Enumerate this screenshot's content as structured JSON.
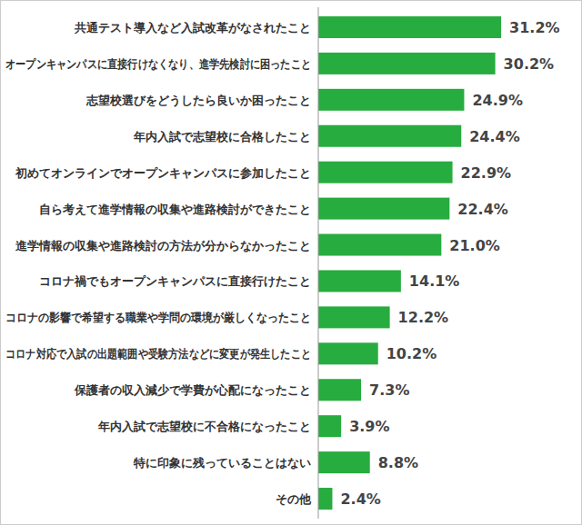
{
  "chart_data": {
    "type": "bar",
    "orientation": "horizontal",
    "categories": [
      "共通テスト導入など入試改革がなされたこと",
      "オープンキャンパスに直接行けなくなり、進学先検討に困ったこと",
      "志望校選びをどうしたら良いか困ったこと",
      "年内入試で志望校に合格したこと",
      "初めてオンラインでオープンキャンパスに参加したこと",
      "自ら考えて進学情報の収集や進路検討ができたこと",
      "進学情報の収集や進路検討の方法が分からなかったこと",
      "コロナ禍でもオープンキャンパスに直接行けたこと",
      "コロナの影響で希望する職業や学問の環境が厳しくなったこと",
      "コロナ対応で入試の出題範囲や受験方法などに変更が発生したこと",
      "保護者の収入減少で学費が心配になったこと",
      "年内入試で志望校に不合格になったこと",
      "特に印象に残っていることはない",
      "その他"
    ],
    "values": [
      31.2,
      30.2,
      24.9,
      24.4,
      22.9,
      22.4,
      21.0,
      14.1,
      12.2,
      10.2,
      7.3,
      3.9,
      8.8,
      2.4
    ],
    "value_labels": [
      "31.2%",
      "30.2%",
      "24.9%",
      "24.4%",
      "22.9%",
      "22.4%",
      "21.0%",
      "14.1%",
      "12.2%",
      "10.2%",
      "7.3%",
      "3.9%",
      "8.8%",
      "2.4%"
    ],
    "color": "#27ac3f",
    "xlim": [
      0,
      45
    ],
    "data_labels": true,
    "tick_labels": "y",
    "grid": false
  }
}
